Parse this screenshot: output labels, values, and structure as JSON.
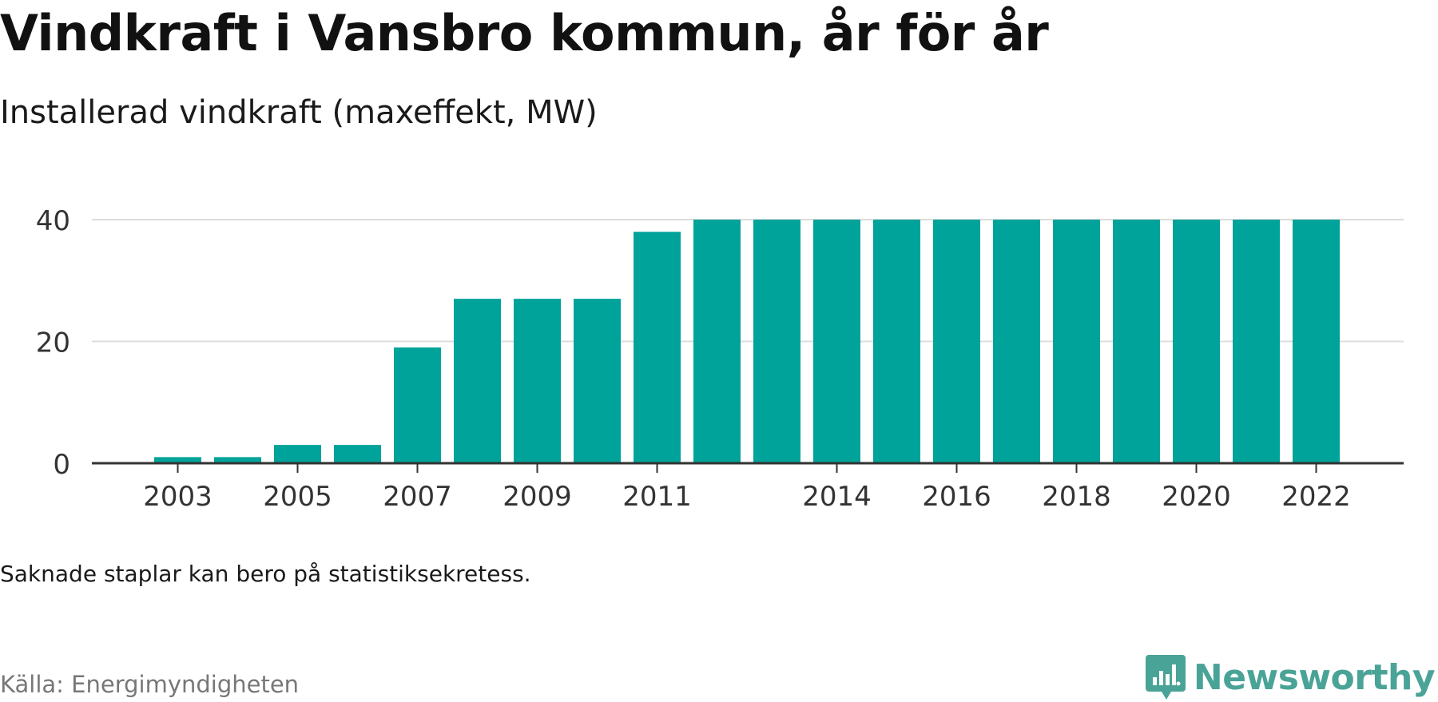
{
  "title": "Vindkraft i Vansbro kommun, år för år",
  "subtitle": "Installerad vindkraft (maxeffekt, MW)",
  "note": "Saknade staplar kan bero på statistiksekretess.",
  "source": "Källa: Energimyndigheten",
  "brand": {
    "name": "Newsworthy",
    "icon": "newsworthy-logo-icon",
    "color": "#4aa397"
  },
  "chart_data": {
    "type": "bar",
    "categories": [
      "2003",
      "2004",
      "2005",
      "2006",
      "2007",
      "2008",
      "2009",
      "2010",
      "2011",
      "2012",
      "2013",
      "2014",
      "2015",
      "2016",
      "2017",
      "2018",
      "2019",
      "2020",
      "2021",
      "2022"
    ],
    "values": [
      1,
      1,
      3,
      3,
      19,
      27,
      27,
      27,
      38,
      40,
      40,
      40,
      40,
      40,
      40,
      40,
      40,
      40,
      40,
      40
    ],
    "tick_labels": [
      "2003",
      "2005",
      "2007",
      "2009",
      "2011",
      "2014",
      "2016",
      "2018",
      "2020",
      "2022"
    ],
    "yticks": [
      0,
      20,
      40
    ],
    "ylim": [
      0,
      40
    ],
    "bar_color": "#00a39a",
    "grid": true
  }
}
